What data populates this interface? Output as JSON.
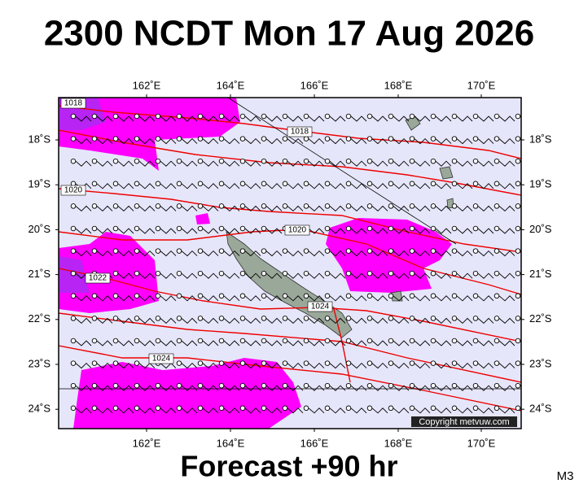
{
  "header": {
    "title": "2300 NCDT Mon 17 Aug 2026"
  },
  "map": {
    "lon_labels": [
      "162˚E",
      "164˚E",
      "166˚E",
      "168˚E",
      "170˚E"
    ],
    "lat_labels": [
      "18˚S",
      "19˚S",
      "20˚S",
      "21˚S",
      "22˚S",
      "23˚S",
      "24˚S"
    ],
    "isobar_labels": [
      "1018",
      "1018",
      "1020",
      "1020",
      "1022",
      "1024",
      "1024"
    ],
    "copyright": "Copyright metvuw.com"
  },
  "footer": {
    "forecast": "Forecast +90 hr",
    "code": "M3"
  }
}
